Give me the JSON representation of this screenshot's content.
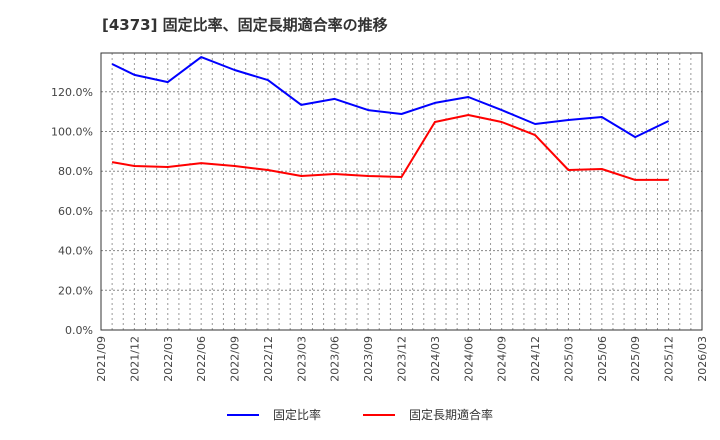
{
  "title": "[4373]  固定比率、固定長期適合率の推移",
  "legend": [
    {
      "label": "固定比率",
      "color": "#0000ff"
    },
    {
      "label": "固定長期適合率",
      "color": "#ff0000"
    }
  ],
  "chart_data": {
    "type": "line",
    "title": "[4373]  固定比率、固定長期適合率の推移",
    "xlabel": "",
    "ylabel": "",
    "ylim": [
      0,
      140
    ],
    "yticks": [
      "0.0%",
      "20.0%",
      "40.0%",
      "60.0%",
      "80.0%",
      "100.0%",
      "120.0%"
    ],
    "xticks": [
      "2021/09",
      "2021/12",
      "2022/03",
      "2022/06",
      "2022/09",
      "2022/12",
      "2023/03",
      "2023/06",
      "2023/09",
      "2023/12",
      "2024/03",
      "2024/06",
      "2024/09",
      "2024/12",
      "2025/03",
      "2025/06",
      "2025/09",
      "2025/12",
      "2026/03"
    ],
    "grid": true,
    "legend_position": "bottom",
    "x": [
      "2021/10",
      "2021/12",
      "2022/03",
      "2022/06",
      "2022/09",
      "2022/12",
      "2023/03",
      "2023/06",
      "2023/09",
      "2023/12",
      "2024/03",
      "2024/06",
      "2024/09",
      "2024/12",
      "2025/03",
      "2025/06",
      "2025/09",
      "2025/12"
    ],
    "series": [
      {
        "name": "固定比率",
        "color": "#0000ff",
        "values": [
          134.0,
          128.5,
          124.9,
          137.5,
          131.0,
          125.9,
          113.4,
          116.4,
          110.8,
          108.8,
          114.4,
          117.4,
          110.8,
          103.8,
          105.8,
          107.3,
          97.2,
          105.3
        ]
      },
      {
        "name": "固定長期適合率",
        "color": "#ff0000",
        "values": [
          84.6,
          82.6,
          82.1,
          84.1,
          82.6,
          80.6,
          77.6,
          78.6,
          77.6,
          77.1,
          104.8,
          108.3,
          104.8,
          98.2,
          80.6,
          81.1,
          75.6,
          75.6
        ]
      }
    ]
  }
}
